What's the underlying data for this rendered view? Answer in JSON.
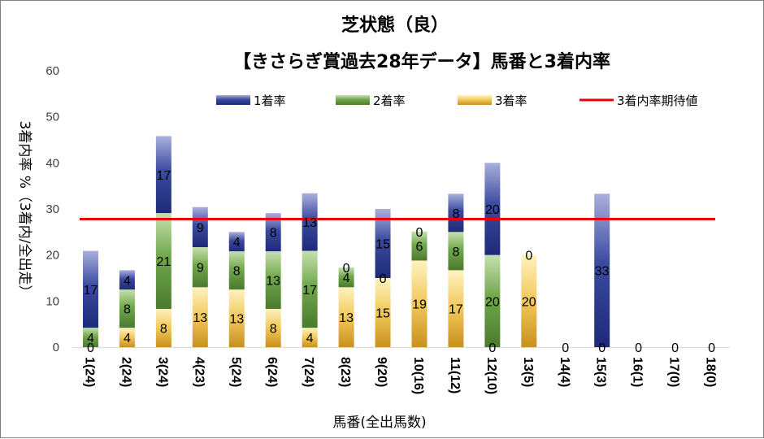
{
  "chart_data": {
    "type": "bar",
    "stacked": true,
    "title": "芝状態（良）",
    "subtitle": "【きさらぎ賞過去28年データ】馬番と3着内率",
    "xlabel": "馬番(全出馬数)",
    "ylabel": "3着内率 %（3着内/全出走）",
    "ylim": [
      0,
      60
    ],
    "yticks": [
      "0",
      "10",
      "20",
      "30",
      "40",
      "50",
      "60"
    ],
    "categories": [
      "1(24)",
      "2(24)",
      "3(24)",
      "4(23)",
      "5(24)",
      "6(24)",
      "7(24)",
      "8(23)",
      "9(20)",
      "10(16)",
      "11(12)",
      "12(10)",
      "13(5)",
      "14(4)",
      "15(3)",
      "16(1)",
      "17(0)",
      "18(0)"
    ],
    "series": [
      {
        "name": "3着率",
        "color": "#e6b84e",
        "values": [
          0,
          4.2,
          8.3,
          13,
          12.5,
          8.3,
          4.2,
          13,
          15,
          18.8,
          16.7,
          0,
          20,
          0,
          0,
          0,
          0,
          0
        ],
        "labels": [
          "0",
          "4",
          "8",
          "13",
          "13",
          "8",
          "4",
          "13",
          "15",
          "19",
          "17",
          "0",
          "20",
          "0",
          "0",
          "0",
          "0",
          "0"
        ]
      },
      {
        "name": "2着率",
        "color": "#70a04a",
        "values": [
          4.2,
          8.3,
          20.8,
          8.7,
          8.3,
          12.5,
          16.7,
          4.3,
          0,
          6.3,
          8.3,
          20,
          0,
          0,
          0,
          0,
          0,
          0
        ],
        "labels": [
          "4",
          "8",
          "21",
          "9",
          "8",
          "13",
          "17",
          "4",
          "0",
          "6",
          "8",
          "20",
          "0",
          "",
          "",
          "",
          "",
          ""
        ]
      },
      {
        "name": "1着率",
        "color": "#3b4aa0",
        "values": [
          16.7,
          4.2,
          16.7,
          8.7,
          4.2,
          8.3,
          12.5,
          0,
          15,
          0,
          8.3,
          20,
          0,
          0,
          33.3,
          0,
          0,
          0
        ],
        "labels": [
          "17",
          "4",
          "17",
          "9",
          "4",
          "8",
          "13",
          "0",
          "15",
          "0",
          "8",
          "20",
          "",
          "",
          "33",
          "",
          "",
          ""
        ]
      }
    ],
    "expected_line": {
      "name": "3着内率期待値",
      "value": 27.8,
      "color": "#e8000b"
    },
    "legend": [
      "1着率",
      "2着率",
      "3着率",
      "3着内率期待値"
    ]
  }
}
